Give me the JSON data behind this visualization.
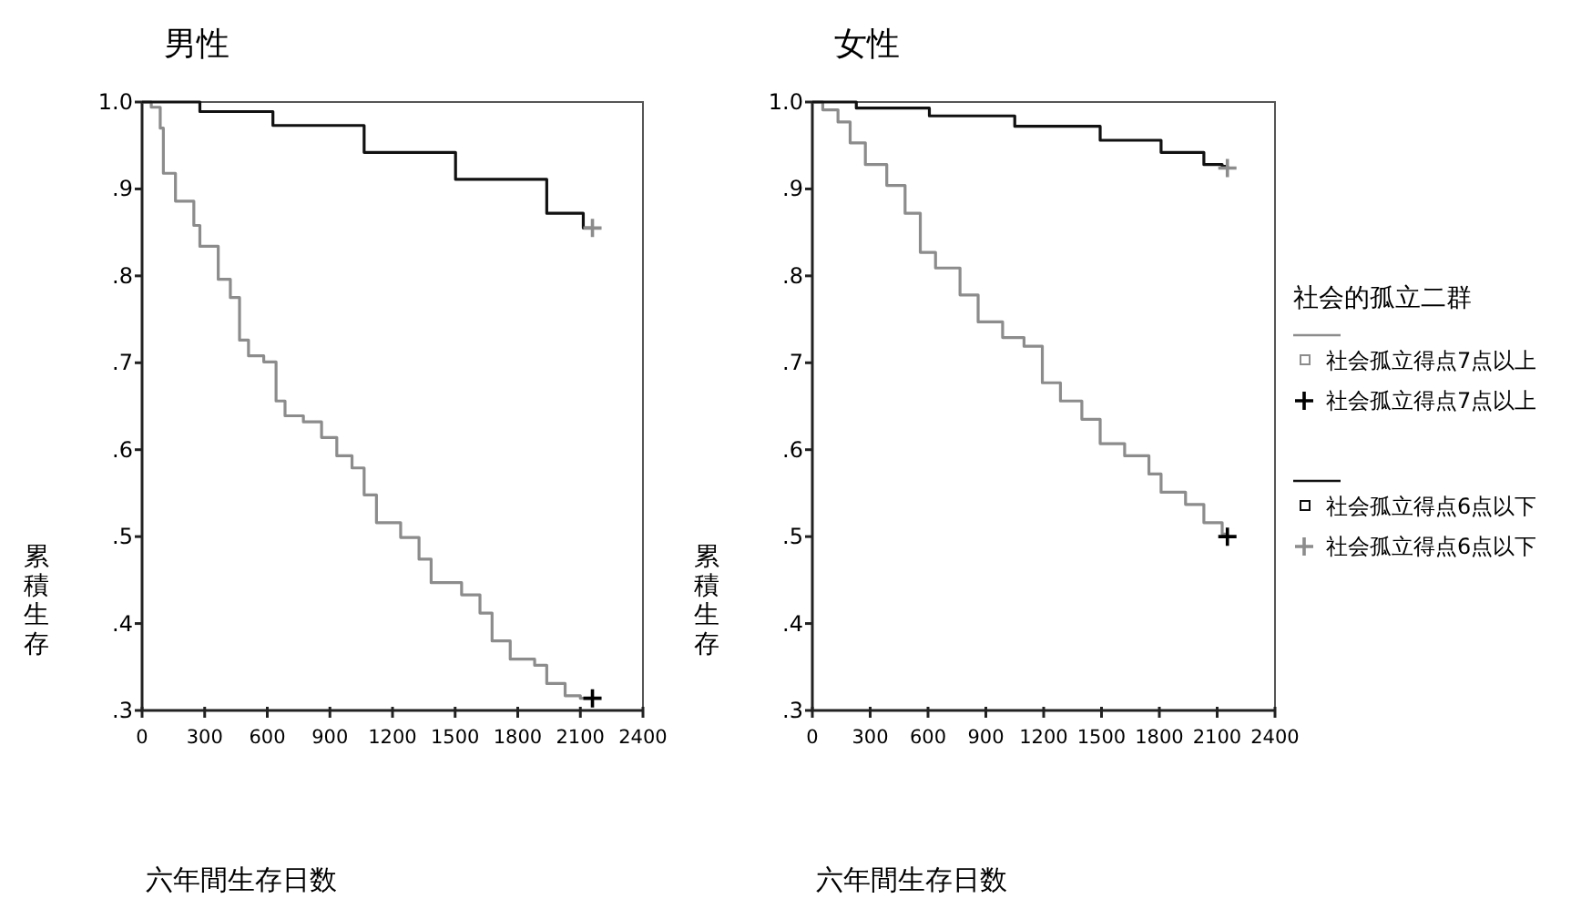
{
  "chart_data": [
    {
      "type": "step",
      "title": "男性",
      "xlabel": "六年間生存日数",
      "ylabel": "累積生存",
      "xlim": [
        0,
        2400
      ],
      "ylim": [
        0.3,
        1.0
      ],
      "xticks": [
        0,
        300,
        600,
        900,
        1200,
        1500,
        1800,
        2100,
        2400
      ],
      "yticks": [
        {
          "value": 0.3,
          "label": ".3"
        },
        {
          "value": 0.4,
          "label": ".4"
        },
        {
          "value": 0.5,
          "label": ".5"
        },
        {
          "value": 0.6,
          "label": ".6"
        },
        {
          "value": 0.7,
          "label": ".7"
        },
        {
          "value": 0.8,
          "label": ".8"
        },
        {
          "value": 0.9,
          "label": ".9"
        },
        {
          "value": 1.0,
          "label": "1.0"
        }
      ],
      "legend": false,
      "series": [
        {
          "color": "#8c8c8c",
          "x": [
            0,
            44,
            87,
            102,
            160,
            248,
            277,
            365,
            423,
            467,
            510,
            583,
            642,
            685,
            773,
            860,
            933,
            1006,
            1064,
            1123,
            1239,
            1327,
            1385,
            1531,
            1619,
            1677,
            1764,
            1881,
            1939,
            2027,
            2100,
            2158
          ],
          "values": [
            1.0,
            0.994,
            0.97,
            0.918,
            0.886,
            0.858,
            0.834,
            0.796,
            0.775,
            0.726,
            0.708,
            0.701,
            0.656,
            0.639,
            0.632,
            0.614,
            0.593,
            0.579,
            0.548,
            0.516,
            0.499,
            0.474,
            0.447,
            0.433,
            0.412,
            0.38,
            0.359,
            0.352,
            0.331,
            0.317,
            0.314,
            0.314
          ]
        },
        {
          "type": "scatter",
          "marker": "cross",
          "color": "#000000",
          "x": [
            2158
          ],
          "values": [
            0.314
          ]
        },
        {
          "color": "#111111",
          "x": [
            0,
            277,
            627,
            1064,
            1502,
            1939,
            2114,
            2158
          ],
          "values": [
            1.0,
            0.989,
            0.973,
            0.942,
            0.911,
            0.872,
            0.855,
            0.855
          ]
        },
        {
          "type": "scatter",
          "marker": "cross",
          "color": "#8c8c8c",
          "x": [
            2158
          ],
          "values": [
            0.855
          ]
        }
      ]
    },
    {
      "type": "step",
      "title": "女性",
      "xlabel": "六年間生存日数",
      "ylabel": "累積生存",
      "xlim": [
        0,
        2400
      ],
      "ylim": [
        0.3,
        1.0
      ],
      "xticks": [
        0,
        300,
        600,
        900,
        1200,
        1500,
        1800,
        2100,
        2400
      ],
      "yticks": [
        {
          "value": 0.3,
          "label": ".3"
        },
        {
          "value": 0.4,
          "label": ".4"
        },
        {
          "value": 0.5,
          "label": ".5"
        },
        {
          "value": 0.6,
          "label": ".6"
        },
        {
          "value": 0.7,
          "label": ".7"
        },
        {
          "value": 0.8,
          "label": ".8"
        },
        {
          "value": 0.9,
          "label": ".9"
        },
        {
          "value": 1.0,
          "label": "1.0"
        }
      ],
      "legend": "right",
      "legend_title": "社会的孤立二群",
      "series": [
        {
          "name": "社会孤立得点7点以上",
          "color": "#8c8c8c",
          "x": [
            0,
            54,
            133,
            196,
            275,
            386,
            481,
            560,
            639,
            766,
            860,
            987,
            1098,
            1193,
            1287,
            1398,
            1493,
            1620,
            1746,
            1809,
            1936,
            2031,
            2126,
            2153
          ],
          "values": [
            1.0,
            0.991,
            0.977,
            0.953,
            0.928,
            0.904,
            0.872,
            0.827,
            0.809,
            0.778,
            0.747,
            0.729,
            0.719,
            0.677,
            0.656,
            0.635,
            0.607,
            0.593,
            0.572,
            0.551,
            0.537,
            0.516,
            0.503,
            0.5
          ]
        },
        {
          "type": "scatter",
          "marker": "cross",
          "name": "社会孤立得点7点以上",
          "color": "#000000",
          "x": [
            2153
          ],
          "values": [
            0.5
          ]
        },
        {
          "name": "社会孤立得点6点以下",
          "color": "#111111",
          "x": [
            0,
            228,
            607,
            1050,
            1493,
            1809,
            2031,
            2126,
            2153
          ],
          "values": [
            1.0,
            0.993,
            0.984,
            0.972,
            0.956,
            0.942,
            0.928,
            0.926,
            0.924
          ]
        },
        {
          "type": "scatter",
          "marker": "cross",
          "name": "社会孤立得点6点以下",
          "color": "#8c8c8c",
          "x": [
            2153
          ],
          "values": [
            0.924
          ]
        }
      ]
    }
  ]
}
